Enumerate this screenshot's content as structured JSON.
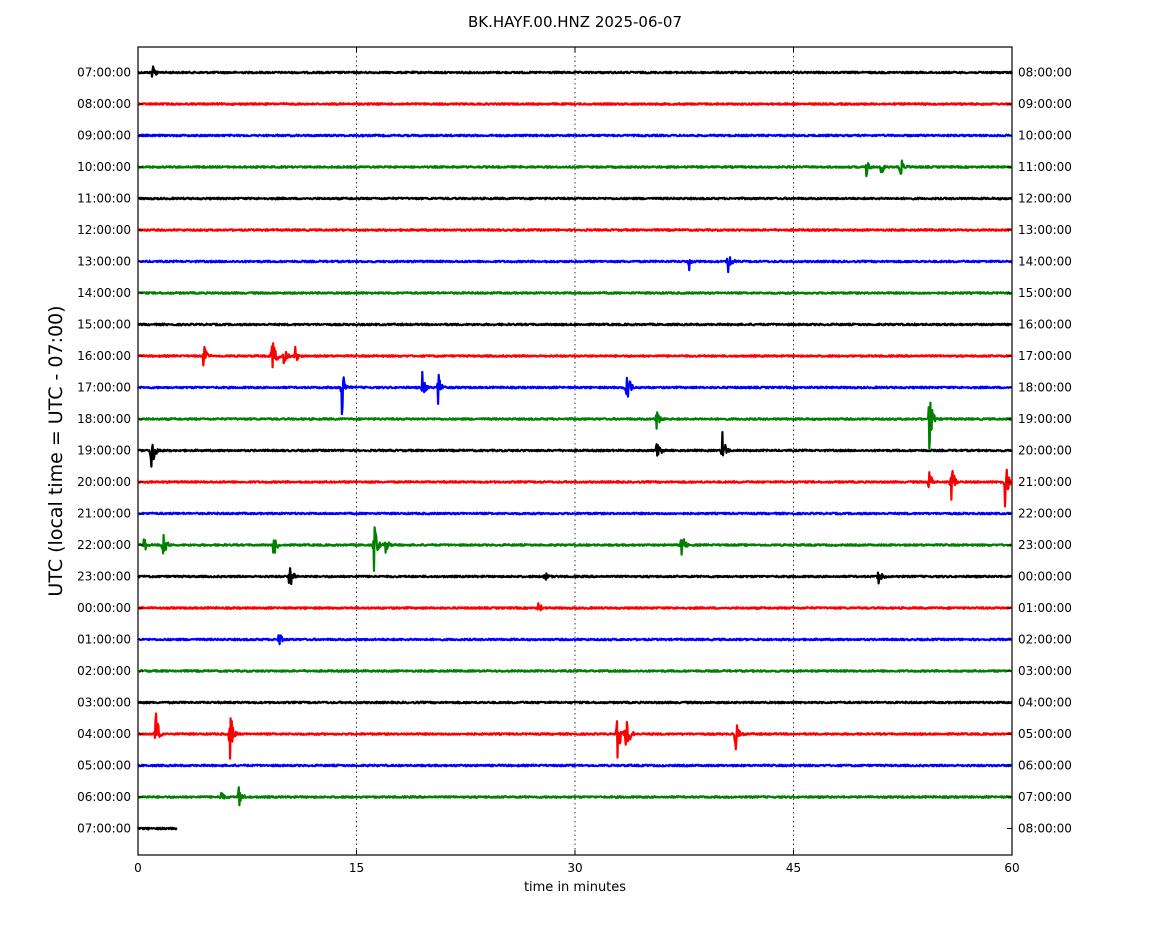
{
  "chart_data": {
    "type": "line",
    "title": "BK.HAYF.00.HNZ 2025-06-07",
    "xlabel": "time in minutes",
    "ylabel": "UTC (local time = UTC - 07:00)",
    "xlim": [
      0,
      60
    ],
    "xticks": [
      0,
      15,
      30,
      45,
      60
    ],
    "grid": "vertical dotted at 15, 30, 45",
    "colors": [
      "#000000",
      "#ff0000",
      "#0000ff",
      "#008000"
    ],
    "left_ticks": [
      "07:00:00",
      "08:00:00",
      "09:00:00",
      "10:00:00",
      "11:00:00",
      "12:00:00",
      "13:00:00",
      "14:00:00",
      "15:00:00",
      "16:00:00",
      "17:00:00",
      "18:00:00",
      "19:00:00",
      "20:00:00",
      "21:00:00",
      "22:00:00",
      "23:00:00",
      "00:00:00",
      "01:00:00",
      "02:00:00",
      "03:00:00",
      "04:00:00",
      "05:00:00",
      "06:00:00",
      "07:00:00"
    ],
    "right_ticks": [
      "08:00:00",
      "09:00:00",
      "10:00:00",
      "11:00:00",
      "12:00:00",
      "13:00:00",
      "14:00:00",
      "15:00:00",
      "16:00:00",
      "17:00:00",
      "18:00:00",
      "19:00:00",
      "20:00:00",
      "21:00:00",
      "22:00:00",
      "23:00:00",
      "00:00:00",
      "01:00:00",
      "02:00:00",
      "03:00:00",
      "04:00:00",
      "05:00:00",
      "06:00:00",
      "07:00:00",
      "08:00:00"
    ],
    "last_trace_end_minute": 2.7,
    "events": [
      [
        {
          "t": 1.0,
          "a": 0.4
        }
      ],
      [],
      [],
      [
        {
          "t": 50.0,
          "a": 0.3
        },
        {
          "t": 51.0,
          "a": 0.3
        },
        {
          "t": 52.3,
          "a": 0.6
        }
      ],
      [],
      [],
      [
        {
          "t": 37.8,
          "a": 0.35
        },
        {
          "t": 40.5,
          "a": 0.5
        }
      ],
      [],
      [],
      [
        {
          "t": 4.5,
          "a": 0.5
        },
        {
          "t": 9.2,
          "a": 0.9
        },
        {
          "t": 10.0,
          "a": 0.3
        },
        {
          "t": 10.8,
          "a": 0.3
        }
      ],
      [
        {
          "t": 14.0,
          "a": 1.0
        },
        {
          "t": 19.5,
          "a": 0.55
        },
        {
          "t": 20.6,
          "a": 0.55
        },
        {
          "t": 33.5,
          "a": 1.2
        }
      ],
      [
        {
          "t": 35.6,
          "a": 0.5
        },
        {
          "t": 54.3,
          "a": 1.1
        }
      ],
      [
        {
          "t": 0.9,
          "a": 0.9
        },
        {
          "t": 35.6,
          "a": 0.45
        },
        {
          "t": 40.1,
          "a": 0.7
        }
      ],
      [
        {
          "t": 54.3,
          "a": 0.5
        },
        {
          "t": 55.8,
          "a": 0.8
        },
        {
          "t": 59.5,
          "a": 1.0
        }
      ],
      [],
      [
        {
          "t": 0.4,
          "a": 0.3
        },
        {
          "t": 1.7,
          "a": 0.7
        },
        {
          "t": 9.3,
          "a": 0.5
        },
        {
          "t": 16.2,
          "a": 0.9
        },
        {
          "t": 17.0,
          "a": 0.3
        },
        {
          "t": 37.3,
          "a": 0.7
        }
      ],
      [
        {
          "t": 10.4,
          "a": 0.6
        },
        {
          "t": 27.9,
          "a": 0.3
        },
        {
          "t": 50.8,
          "a": 0.4
        }
      ],
      [
        {
          "t": 27.5,
          "a": 0.3
        }
      ],
      [
        {
          "t": 9.6,
          "a": 0.4
        }
      ],
      [],
      [],
      [
        {
          "t": 1.2,
          "a": 0.9
        },
        {
          "t": 6.3,
          "a": 1.1
        },
        {
          "t": 32.9,
          "a": 0.9
        },
        {
          "t": 33.5,
          "a": 1.0
        },
        {
          "t": 41.0,
          "a": 0.7
        }
      ],
      [],
      [
        {
          "t": 5.7,
          "a": 0.3
        },
        {
          "t": 6.9,
          "a": 0.4
        }
      ],
      []
    ]
  }
}
